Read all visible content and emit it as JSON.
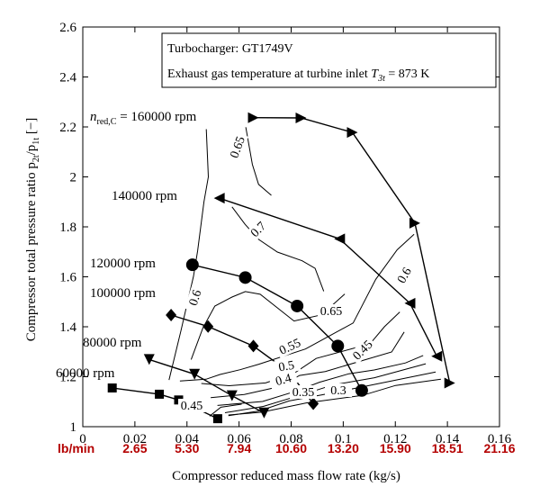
{
  "chart_data": {
    "type": "line",
    "title": "",
    "xlabel": "Compressor reduced mass flow rate (kg/s)",
    "ylabel": "Compressor total pressure ratio p",
    "ylabel_subscript_1": "2t",
    "ylabel_mid": "/p",
    "ylabel_subscript_2": "1t",
    "ylabel_tail": " [−]",
    "xlim": [
      0,
      0.16
    ],
    "ylim": [
      1,
      2.6
    ],
    "x_ticks": [
      "0",
      "0.02",
      "0.04",
      "0.06",
      "0.08",
      "0.1",
      "0.12",
      "0.14",
      "0.16"
    ],
    "y_ticks": [
      "1",
      "1.2",
      "1.4",
      "1.6",
      "1.8",
      "2",
      "2.2",
      "2.4",
      "2.6"
    ],
    "grid": false,
    "secondary_x_unit": "lb/min",
    "secondary_x_ticks": [
      "2.65",
      "5.30",
      "7.94",
      "10.60",
      "13.20",
      "15.90",
      "18.51",
      "21.16"
    ],
    "secondary_color": "#b40000",
    "info_box": {
      "line1": "Turbocharger: GT1749V",
      "line2_prefix": "Exhaust gas temperature at turbine inlet ",
      "line2_symbol": "T",
      "line2_sub": "3t",
      "line2_suffix": " = 873 K"
    },
    "speed_lines": [
      {
        "name": "160000 rpm",
        "prefix": "n",
        "prefix_sub": "red,C",
        "label_text": " = 160000 rpm",
        "marker": "triangle-right",
        "x": [
          0.0655,
          0.0838,
          0.1035,
          0.1275,
          0.1409
        ],
        "y": [
          2.237,
          2.236,
          2.178,
          1.815,
          1.175
        ]
      },
      {
        "name": "140000 rpm",
        "label_text": "140000 rpm",
        "marker": "triangle-left",
        "x": [
          0.0524,
          0.0986,
          0.1256,
          0.1359
        ],
        "y": [
          1.915,
          1.752,
          1.494,
          1.282
        ]
      },
      {
        "name": "120000 rpm",
        "label_text": "120000 rpm",
        "marker": "circle",
        "x": [
          0.0421,
          0.0624,
          0.0823,
          0.0979,
          0.1071
        ],
        "y": [
          1.648,
          1.597,
          1.483,
          1.323,
          1.145
        ]
      },
      {
        "name": "100000 rpm",
        "label_text": "100000 rpm",
        "marker": "diamond",
        "x": [
          0.0339,
          0.0481,
          0.0655,
          0.0794,
          0.0885
        ],
        "y": [
          1.447,
          1.401,
          1.323,
          1.217,
          1.092
        ]
      },
      {
        "name": "80000 rpm",
        "label_text": "80000 rpm",
        "marker": "triangle-down",
        "x": [
          0.0255,
          0.0429,
          0.0573,
          0.0696
        ],
        "y": [
          1.269,
          1.21,
          1.124,
          1.055
        ]
      },
      {
        "name": "60000 rpm",
        "label_text": "60000 rpm",
        "marker": "square",
        "x": [
          0.0113,
          0.0294,
          0.0368,
          0.0518
        ],
        "y": [
          1.155,
          1.13,
          1.107,
          1.032
        ]
      }
    ],
    "efficiency_contours": [
      {
        "label": "0.65",
        "x": [
          0.0626,
          0.0651,
          0.0675,
          0.0724
        ],
        "y": [
          2.199,
          2.05,
          1.97,
          1.926
        ]
      },
      {
        "label": "0.7",
        "x": [
          0.0573,
          0.0623,
          0.0675,
          0.0747,
          0.0842,
          0.0892,
          0.0925
        ],
        "y": [
          1.88,
          1.81,
          1.75,
          1.699,
          1.664,
          1.634,
          1.542
        ]
      },
      {
        "label": "0.6",
        "x": [
          0.0474,
          0.0482,
          0.0465,
          0.0441,
          0.0425,
          0.0377,
          0.0331
        ],
        "y": [
          2.191,
          2.0,
          1.9,
          1.704,
          1.602,
          1.385,
          1.187
        ]
      },
      {
        "label": "0.65",
        "x": [
          0.0416,
          0.0461,
          0.0507,
          0.0573,
          0.0624,
          0.0681,
          0.0811,
          0.0917,
          0.1006
        ],
        "y": [
          1.269,
          1.395,
          1.483,
          1.519,
          1.541,
          1.53,
          1.423,
          1.448,
          1.531
        ]
      },
      {
        "label": "0.6",
        "x": [
          0.0373,
          0.0473,
          0.0527,
          0.0604,
          0.0676,
          0.0855,
          0.1038,
          0.1125,
          0.1207,
          0.1272
        ],
        "y": [
          1.183,
          1.19,
          1.209,
          1.228,
          1.25,
          1.311,
          1.415,
          1.59,
          1.708,
          1.77
        ]
      },
      {
        "label": "0.55",
        "x": [
          0.0455,
          0.0562,
          0.0702,
          0.081,
          0.0896,
          0.1103,
          0.1158,
          0.1217
        ],
        "y": [
          1.173,
          1.164,
          1.175,
          1.213,
          1.273,
          1.332,
          1.4,
          1.459
        ]
      },
      {
        "label": "0.5",
        "x": [
          0.0491,
          0.062,
          0.0759,
          0.0832,
          0.0931,
          0.1186,
          0.1234
        ],
        "y": [
          1.116,
          1.129,
          1.161,
          1.205,
          1.221,
          1.299,
          1.379
        ]
      },
      {
        "label": "0.45",
        "x": [
          0.0517,
          0.069,
          0.0821,
          0.0909,
          0.1022,
          0.1119,
          0.1239,
          0.1307
        ],
        "y": [
          1.085,
          1.101,
          1.143,
          1.178,
          1.212,
          1.227,
          1.255,
          1.285
        ]
      },
      {
        "label": "0.4",
        "x": [
          0.0546,
          0.0693,
          0.086,
          0.096,
          0.112,
          0.1317
        ],
        "y": [
          1.056,
          1.081,
          1.134,
          1.167,
          1.196,
          1.252
        ]
      },
      {
        "label": "0.35",
        "x": [
          0.0559,
          0.0678,
          0.0792,
          0.0921,
          0.1072,
          0.1355
        ],
        "y": [
          1.044,
          1.063,
          1.103,
          1.128,
          1.159,
          1.219
        ]
      },
      {
        "label": "0.3",
        "x": [
          0.0559,
          0.0688,
          0.0858,
          0.1073,
          0.1201,
          0.1375
        ],
        "y": [
          1.047,
          1.058,
          1.095,
          1.125,
          1.165,
          1.19
        ]
      },
      {
        "label": "0.45",
        "x": [
          0.0487,
          0.053,
          0.061
        ],
        "y": [
          1.042,
          1.078,
          1.09
        ]
      }
    ]
  }
}
